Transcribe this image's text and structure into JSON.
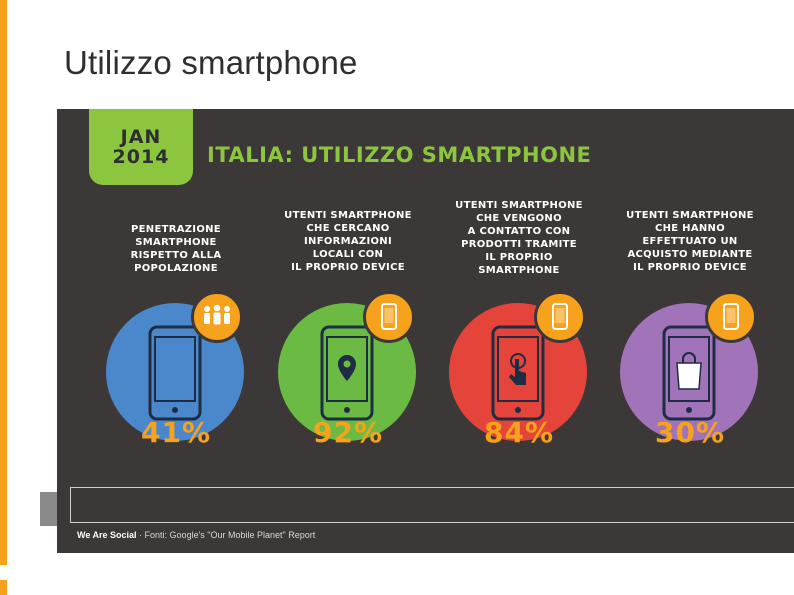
{
  "slide": {
    "title": "Utilizzo smartphone"
  },
  "infographic": {
    "date_month": "JAN",
    "date_year": "2014",
    "title": "ITALIA: UTILIZZO SMARTPHONE",
    "stats": [
      {
        "label": "PENETRAZIONE\nSMARTPHONE\nRISPETTO ALLA\nPOPOLAZIONE",
        "value": "41%",
        "icon": "people-icon",
        "color": "#4b87cb"
      },
      {
        "label": "UTENTI SMARTPHONE\nCHE CERCANO\nINFORMAZIONI\nLOCALI CON\nIL PROPRIO DEVICE",
        "value": "92%",
        "icon": "map-pin-icon",
        "color": "#6aba43"
      },
      {
        "label": "UTENTI SMARTPHONE\nCHE VENGONO\nA CONTATTO CON\nPRODOTTI TRAMITE\nIL PROPRIO\nSMARTPHONE",
        "value": "84%",
        "icon": "touch-icon",
        "color": "#e5443b"
      },
      {
        "label": "UTENTI SMARTPHONE\nCHE HANNO\nEFFETTUATO UN\nACQUISTO MEDIANTE\nIL PROPRIO DEVICE",
        "value": "30%",
        "icon": "shopping-bag-icon",
        "color": "#a173b8"
      }
    ],
    "footer": {
      "brand": "We Are Social",
      "source": "· Fonti: Google's \"Our Mobile Planet\" Report"
    }
  },
  "colors": {
    "accent": "#f6a21c",
    "green": "#8cc63f",
    "background": "#3c3837"
  }
}
